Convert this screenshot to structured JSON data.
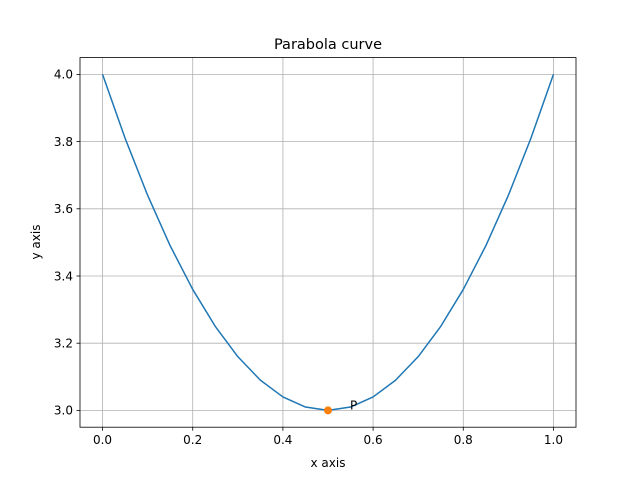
{
  "chart_data": {
    "type": "line",
    "title": "Parabola curve",
    "xlabel": "x axis",
    "ylabel": "y axis",
    "xlim": [
      -0.05,
      1.05
    ],
    "ylim": [
      2.95,
      4.05
    ],
    "grid": true,
    "xticks": [
      0.0,
      0.2,
      0.4,
      0.6,
      0.8,
      1.0
    ],
    "yticks": [
      3.0,
      3.2,
      3.4,
      3.6,
      3.8,
      4.0
    ],
    "xtick_labels": [
      "0.0",
      "0.2",
      "0.4",
      "0.6",
      "0.8",
      "1.0"
    ],
    "ytick_labels": [
      "3.0",
      "3.2",
      "3.4",
      "3.6",
      "3.8",
      "4.0"
    ],
    "series": [
      {
        "color": "#1f77b4",
        "x": [
          0.0,
          0.05,
          0.1,
          0.15,
          0.2,
          0.25,
          0.3,
          0.35,
          0.4,
          0.45,
          0.5,
          0.55,
          0.6,
          0.65,
          0.7,
          0.75,
          0.8,
          0.85,
          0.9,
          0.95,
          1.0
        ],
        "y": [
          4.0,
          3.81,
          3.64,
          3.49,
          3.36,
          3.25,
          3.16,
          3.09,
          3.04,
          3.01,
          3.0,
          3.01,
          3.04,
          3.09,
          3.16,
          3.25,
          3.36,
          3.49,
          3.64,
          3.81,
          4.0
        ]
      }
    ],
    "points": [
      {
        "x": 0.5,
        "y": 3.0,
        "color": "#ff7f0e",
        "label": "P"
      }
    ]
  }
}
